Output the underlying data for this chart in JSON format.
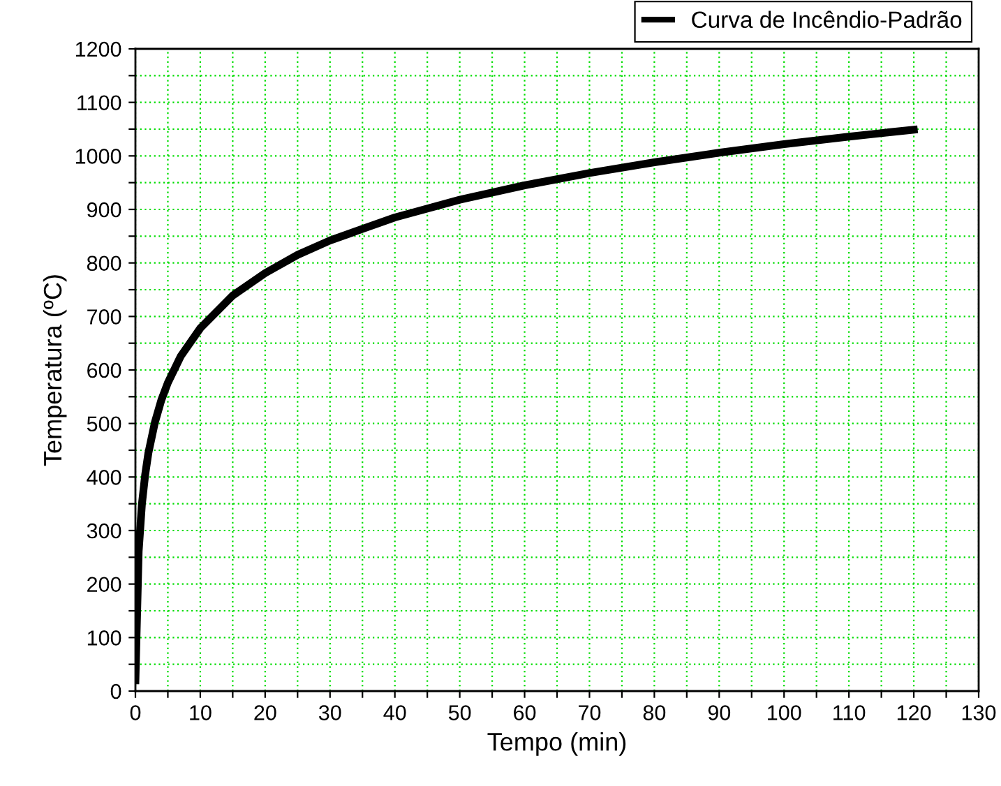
{
  "chart_data": {
    "type": "line",
    "xlabel": "Tempo (min)",
    "ylabel": "Temperatura (ºC)",
    "x": [
      0,
      0.5,
      1,
      1.5,
      2,
      3,
      4,
      5,
      7,
      10,
      15,
      20,
      25,
      30,
      40,
      50,
      60,
      70,
      80,
      90,
      100,
      110,
      120
    ],
    "series": [
      {
        "name": "Curva de Incêndio-Padrão",
        "color": "#000000",
        "values": [
          20,
          261,
          349,
          404,
          445,
          502,
          544,
          576,
          626,
          678,
          739,
          781,
          815,
          842,
          885,
          918,
          945,
          968,
          988,
          1006,
          1022,
          1036,
          1049
        ]
      }
    ],
    "xlim": [
      0,
      130
    ],
    "ylim": [
      0,
      1200
    ],
    "xticks": [
      0,
      {
        "value": 5,
        "label": null
      },
      10,
      {
        "value": 15,
        "label": null
      },
      20,
      {
        "value": 25,
        "label": null
      },
      30,
      {
        "value": 35,
        "label": null
      },
      40,
      {
        "value": 45,
        "label": null
      },
      50,
      {
        "value": 55,
        "label": null
      },
      60,
      {
        "value": 65,
        "label": null
      },
      70,
      {
        "value": 75,
        "label": null
      },
      80,
      {
        "value": 85,
        "label": null
      },
      90,
      {
        "value": 95,
        "label": null
      },
      100,
      {
        "value": 105,
        "label": null
      },
      110,
      {
        "value": 115,
        "label": null
      },
      120,
      {
        "value": 125,
        "label": null
      },
      130
    ],
    "yticks": [
      0,
      {
        "value": 50,
        "label": null
      },
      100,
      {
        "value": 150,
        "label": null
      },
      200,
      {
        "value": 250,
        "label": null
      },
      300,
      {
        "value": 350,
        "label": null
      },
      400,
      {
        "value": 450,
        "label": null
      },
      500,
      {
        "value": 550,
        "label": null
      },
      600,
      {
        "value": 650,
        "label": null
      },
      700,
      {
        "value": 750,
        "label": null
      },
      800,
      {
        "value": 850,
        "label": null
      },
      900,
      {
        "value": 950,
        "label": null
      },
      1000,
      {
        "value": 1050,
        "label": null
      },
      1100,
      {
        "value": 1150,
        "label": null
      },
      1200
    ],
    "grid": true,
    "legend": "top right",
    "line_style": "solid",
    "marker": "none"
  }
}
